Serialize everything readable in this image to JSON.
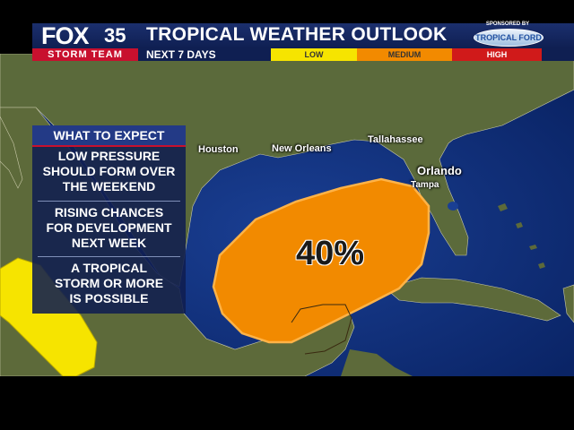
{
  "branding": {
    "network": "FOX",
    "channel": "35",
    "team": "STORM TEAM"
  },
  "header": {
    "title": "TROPICAL WEATHER OUTLOOK",
    "subtitle": "NEXT 7 DAYS"
  },
  "legend": {
    "levels": [
      {
        "label": "LOW",
        "color": "#f6e400"
      },
      {
        "label": "MEDIUM",
        "color": "#f28a00"
      },
      {
        "label": "HIGH",
        "color": "#d01a1a"
      }
    ]
  },
  "sponsor": {
    "label": "SPONSORED BY",
    "name": "TROPICAL FORD"
  },
  "panel": {
    "heading": "WHAT TO EXPECT",
    "items": [
      [
        "LOW PRESSURE",
        "SHOULD FORM OVER",
        "THE WEEKEND"
      ],
      [
        "RISING CHANCES",
        "FOR DEVELOPMENT",
        "NEXT WEEK"
      ],
      [
        "A TROPICAL",
        "STORM OR MORE",
        "IS POSSIBLE"
      ]
    ]
  },
  "cities": {
    "houston": "Houston",
    "new_orleans": "New Orleans",
    "tallahassee": "Tallahassee",
    "orlando": "Orlando",
    "tampa": "Tampa"
  },
  "areas": {
    "gulf": {
      "chance": "40%",
      "color": "#f28a00"
    },
    "pacific": {
      "color": "#f6e400"
    }
  },
  "colors": {
    "ocean": "#0c2b73",
    "land": "#5d6a3a",
    "header": "#1b2f6d",
    "accent": "#c8102e"
  }
}
